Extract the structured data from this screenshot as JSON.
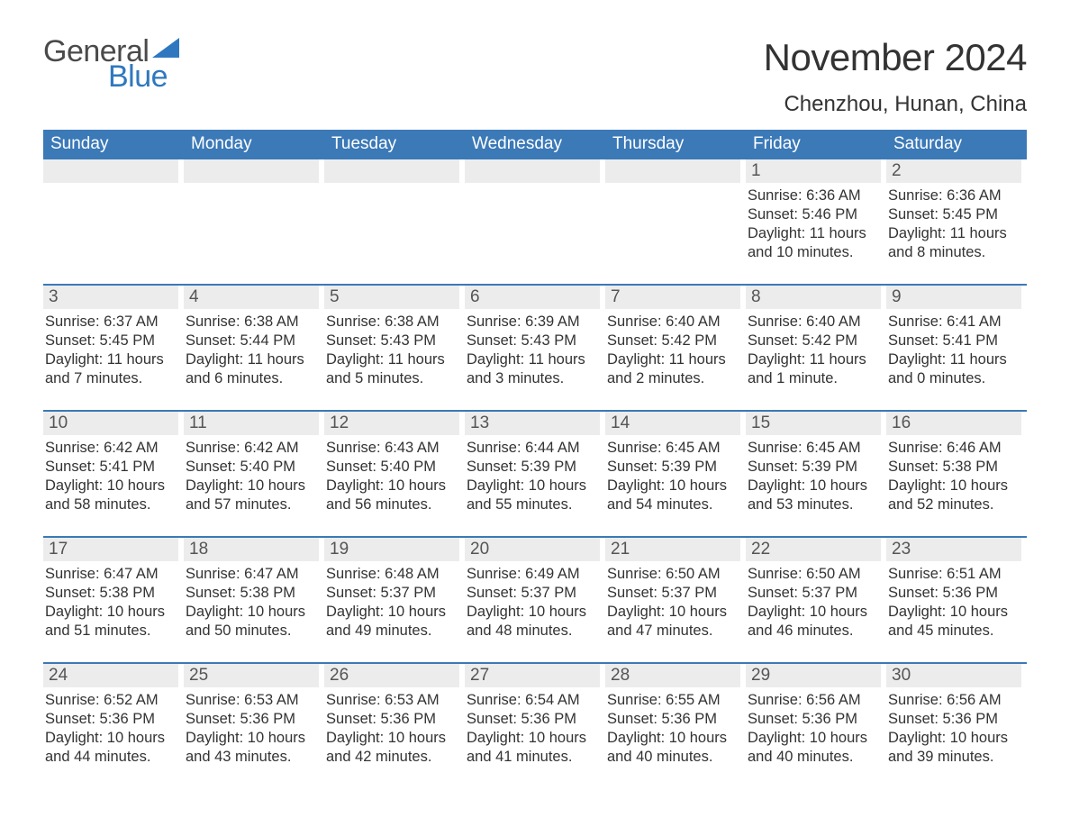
{
  "brand": {
    "word1": "General",
    "word2": "Blue",
    "word1_color": "#4a4a4a",
    "word2_color": "#2f78bf",
    "sail_color": "#2f78bf"
  },
  "header": {
    "month_title": "November 2024",
    "location": "Chenzhou, Hunan, China"
  },
  "styling": {
    "weekday_bg": "#3b79b7",
    "weekday_fg": "#ffffff",
    "daynum_bg": "#ececec",
    "row_border_color": "#3b79b7",
    "page_bg": "#ffffff",
    "text_color": "#333333",
    "title_fontsize_pt": 32,
    "location_fontsize_pt": 18,
    "weekday_fontsize_pt": 14,
    "body_fontsize_pt": 12
  },
  "calendar": {
    "type": "table",
    "columns": [
      "Sunday",
      "Monday",
      "Tuesday",
      "Wednesday",
      "Thursday",
      "Friday",
      "Saturday"
    ],
    "weeks": [
      [
        null,
        null,
        null,
        null,
        null,
        {
          "day": "1",
          "sunrise": "Sunrise: 6:36 AM",
          "sunset": "Sunset: 5:46 PM",
          "daylight": "Daylight: 11 hours and 10 minutes."
        },
        {
          "day": "2",
          "sunrise": "Sunrise: 6:36 AM",
          "sunset": "Sunset: 5:45 PM",
          "daylight": "Daylight: 11 hours and 8 minutes."
        }
      ],
      [
        {
          "day": "3",
          "sunrise": "Sunrise: 6:37 AM",
          "sunset": "Sunset: 5:45 PM",
          "daylight": "Daylight: 11 hours and 7 minutes."
        },
        {
          "day": "4",
          "sunrise": "Sunrise: 6:38 AM",
          "sunset": "Sunset: 5:44 PM",
          "daylight": "Daylight: 11 hours and 6 minutes."
        },
        {
          "day": "5",
          "sunrise": "Sunrise: 6:38 AM",
          "sunset": "Sunset: 5:43 PM",
          "daylight": "Daylight: 11 hours and 5 minutes."
        },
        {
          "day": "6",
          "sunrise": "Sunrise: 6:39 AM",
          "sunset": "Sunset: 5:43 PM",
          "daylight": "Daylight: 11 hours and 3 minutes."
        },
        {
          "day": "7",
          "sunrise": "Sunrise: 6:40 AM",
          "sunset": "Sunset: 5:42 PM",
          "daylight": "Daylight: 11 hours and 2 minutes."
        },
        {
          "day": "8",
          "sunrise": "Sunrise: 6:40 AM",
          "sunset": "Sunset: 5:42 PM",
          "daylight": "Daylight: 11 hours and 1 minute."
        },
        {
          "day": "9",
          "sunrise": "Sunrise: 6:41 AM",
          "sunset": "Sunset: 5:41 PM",
          "daylight": "Daylight: 11 hours and 0 minutes."
        }
      ],
      [
        {
          "day": "10",
          "sunrise": "Sunrise: 6:42 AM",
          "sunset": "Sunset: 5:41 PM",
          "daylight": "Daylight: 10 hours and 58 minutes."
        },
        {
          "day": "11",
          "sunrise": "Sunrise: 6:42 AM",
          "sunset": "Sunset: 5:40 PM",
          "daylight": "Daylight: 10 hours and 57 minutes."
        },
        {
          "day": "12",
          "sunrise": "Sunrise: 6:43 AM",
          "sunset": "Sunset: 5:40 PM",
          "daylight": "Daylight: 10 hours and 56 minutes."
        },
        {
          "day": "13",
          "sunrise": "Sunrise: 6:44 AM",
          "sunset": "Sunset: 5:39 PM",
          "daylight": "Daylight: 10 hours and 55 minutes."
        },
        {
          "day": "14",
          "sunrise": "Sunrise: 6:45 AM",
          "sunset": "Sunset: 5:39 PM",
          "daylight": "Daylight: 10 hours and 54 minutes."
        },
        {
          "day": "15",
          "sunrise": "Sunrise: 6:45 AM",
          "sunset": "Sunset: 5:39 PM",
          "daylight": "Daylight: 10 hours and 53 minutes."
        },
        {
          "day": "16",
          "sunrise": "Sunrise: 6:46 AM",
          "sunset": "Sunset: 5:38 PM",
          "daylight": "Daylight: 10 hours and 52 minutes."
        }
      ],
      [
        {
          "day": "17",
          "sunrise": "Sunrise: 6:47 AM",
          "sunset": "Sunset: 5:38 PM",
          "daylight": "Daylight: 10 hours and 51 minutes."
        },
        {
          "day": "18",
          "sunrise": "Sunrise: 6:47 AM",
          "sunset": "Sunset: 5:38 PM",
          "daylight": "Daylight: 10 hours and 50 minutes."
        },
        {
          "day": "19",
          "sunrise": "Sunrise: 6:48 AM",
          "sunset": "Sunset: 5:37 PM",
          "daylight": "Daylight: 10 hours and 49 minutes."
        },
        {
          "day": "20",
          "sunrise": "Sunrise: 6:49 AM",
          "sunset": "Sunset: 5:37 PM",
          "daylight": "Daylight: 10 hours and 48 minutes."
        },
        {
          "day": "21",
          "sunrise": "Sunrise: 6:50 AM",
          "sunset": "Sunset: 5:37 PM",
          "daylight": "Daylight: 10 hours and 47 minutes."
        },
        {
          "day": "22",
          "sunrise": "Sunrise: 6:50 AM",
          "sunset": "Sunset: 5:37 PM",
          "daylight": "Daylight: 10 hours and 46 minutes."
        },
        {
          "day": "23",
          "sunrise": "Sunrise: 6:51 AM",
          "sunset": "Sunset: 5:36 PM",
          "daylight": "Daylight: 10 hours and 45 minutes."
        }
      ],
      [
        {
          "day": "24",
          "sunrise": "Sunrise: 6:52 AM",
          "sunset": "Sunset: 5:36 PM",
          "daylight": "Daylight: 10 hours and 44 minutes."
        },
        {
          "day": "25",
          "sunrise": "Sunrise: 6:53 AM",
          "sunset": "Sunset: 5:36 PM",
          "daylight": "Daylight: 10 hours and 43 minutes."
        },
        {
          "day": "26",
          "sunrise": "Sunrise: 6:53 AM",
          "sunset": "Sunset: 5:36 PM",
          "daylight": "Daylight: 10 hours and 42 minutes."
        },
        {
          "day": "27",
          "sunrise": "Sunrise: 6:54 AM",
          "sunset": "Sunset: 5:36 PM",
          "daylight": "Daylight: 10 hours and 41 minutes."
        },
        {
          "day": "28",
          "sunrise": "Sunrise: 6:55 AM",
          "sunset": "Sunset: 5:36 PM",
          "daylight": "Daylight: 10 hours and 40 minutes."
        },
        {
          "day": "29",
          "sunrise": "Sunrise: 6:56 AM",
          "sunset": "Sunset: 5:36 PM",
          "daylight": "Daylight: 10 hours and 40 minutes."
        },
        {
          "day": "30",
          "sunrise": "Sunrise: 6:56 AM",
          "sunset": "Sunset: 5:36 PM",
          "daylight": "Daylight: 10 hours and 39 minutes."
        }
      ]
    ]
  }
}
